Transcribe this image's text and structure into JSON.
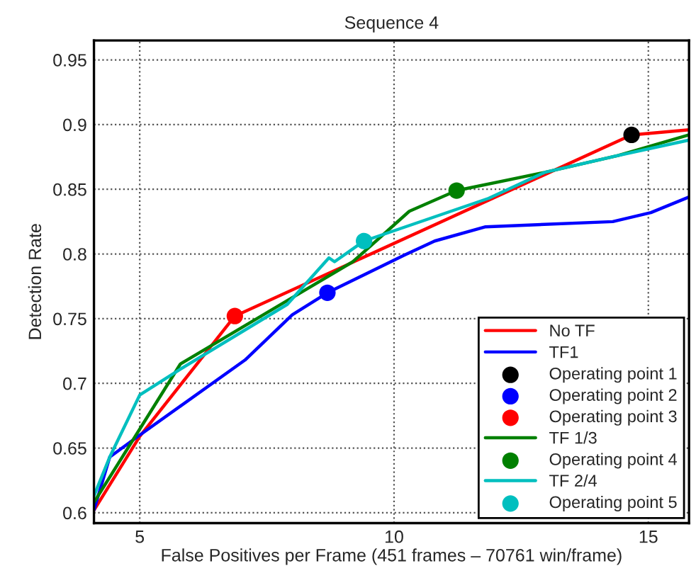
{
  "chart_data": {
    "type": "line",
    "title": "Sequence 4",
    "xlabel": "False Positives per Frame (451 frames – 70761 win/frame)",
    "ylabel": "Detection Rate",
    "xlim": [
      4.1,
      15.8
    ],
    "ylim": [
      0.592,
      0.965
    ],
    "xticks": [
      5,
      10,
      15
    ],
    "yticks": [
      0.6,
      0.65,
      0.7,
      0.75,
      0.8,
      0.85,
      0.9,
      0.95
    ],
    "grid": true,
    "legend": "bottom right",
    "series": [
      {
        "name": "No TF",
        "color": "#ff0000",
        "x": [
          4.1,
          5.0,
          6.87,
          14.67,
          15.8
        ],
        "values": [
          0.602,
          0.659,
          0.752,
          0.892,
          0.896
        ]
      },
      {
        "name": "TF1",
        "color": "#0000ff",
        "x": [
          4.1,
          4.41,
          5.0,
          7.07,
          8.0,
          8.69,
          10.2,
          10.8,
          11.8,
          14.3,
          15.05,
          15.8
        ],
        "values": [
          0.602,
          0.643,
          0.66,
          0.718,
          0.753,
          0.77,
          0.799,
          0.81,
          0.821,
          0.825,
          0.832,
          0.844
        ]
      },
      {
        "name": "Operating point 1",
        "type": "scatter",
        "color": "#000000",
        "x": [
          14.67
        ],
        "values": [
          0.892
        ]
      },
      {
        "name": "Operating point 2",
        "type": "scatter",
        "color": "#0000ff",
        "x": [
          8.69
        ],
        "values": [
          0.77
        ]
      },
      {
        "name": "Operating point 3",
        "type": "scatter",
        "color": "#ff0000",
        "x": [
          6.87
        ],
        "values": [
          0.752
        ]
      },
      {
        "name": "TF 1/3",
        "color": "#008000",
        "x": [
          4.1,
          5.8,
          7.9,
          9.19,
          10.3,
          11.23,
          12.96,
          14.4,
          15.8
        ],
        "values": [
          0.608,
          0.715,
          0.764,
          0.794,
          0.833,
          0.849,
          0.863,
          0.876,
          0.892
        ]
      },
      {
        "name": "Operating point 4",
        "type": "scatter",
        "color": "#008000",
        "x": [
          11.23
        ],
        "values": [
          0.849
        ]
      },
      {
        "name": "TF 2/4",
        "color": "#00bfbf",
        "x": [
          4.1,
          4.41,
          5.0,
          5.8,
          7.9,
          8.72,
          8.83,
          9.41,
          11.86,
          12.96,
          14.4,
          15.8
        ],
        "values": [
          0.613,
          0.643,
          0.691,
          0.711,
          0.761,
          0.797,
          0.794,
          0.81,
          0.843,
          0.863,
          0.876,
          0.888
        ]
      },
      {
        "name": "Operating point 5",
        "type": "scatter",
        "color": "#00bfbf",
        "x": [
          9.41
        ],
        "values": [
          0.81
        ]
      }
    ]
  }
}
